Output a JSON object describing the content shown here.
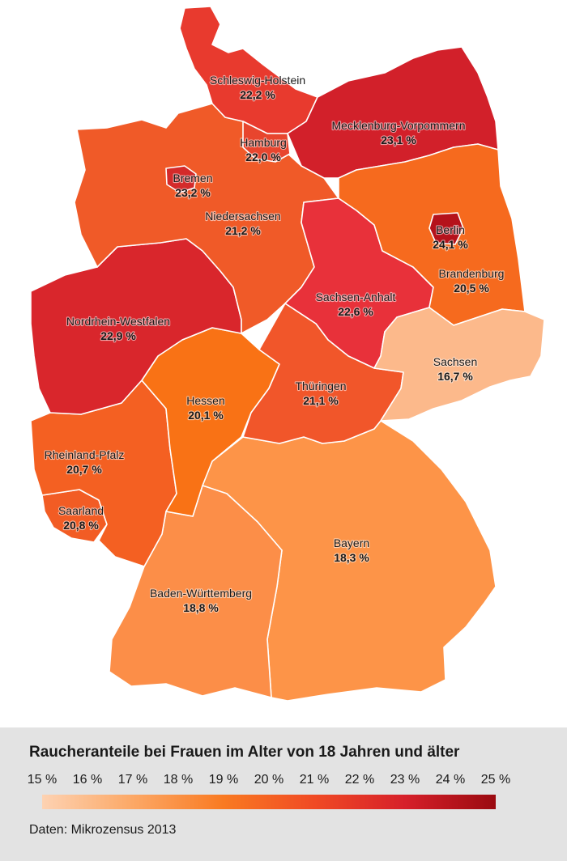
{
  "map": {
    "regions": [
      {
        "id": "schleswig-holstein",
        "name": "Schleswig-Holstein",
        "value_label": "22,2 %",
        "value": 22.2,
        "color": "#e83a2e"
      },
      {
        "id": "hamburg",
        "name": "Hamburg",
        "value_label": "22,0 %",
        "value": 22.0,
        "color": "#e8452e"
      },
      {
        "id": "mecklenburg-vorpommern",
        "name": "Mecklenburg-Vorpommern",
        "value_label": "23,1 %",
        "value": 23.1,
        "color": "#d2202a"
      },
      {
        "id": "bremen",
        "name": "Bremen",
        "value_label": "23,2 %",
        "value": 23.2,
        "color": "#d42a2a"
      },
      {
        "id": "niedersachsen",
        "name": "Niedersachsen",
        "value_label": "21,2 %",
        "value": 21.2,
        "color": "#f05a28"
      },
      {
        "id": "berlin",
        "name": "Berlin",
        "value_label": "24,1 %",
        "value": 24.1,
        "color": "#b5121b"
      },
      {
        "id": "brandenburg",
        "name": "Brandenburg",
        "value_label": "20,5 %",
        "value": 20.5,
        "color": "#f66a1e"
      },
      {
        "id": "sachsen-anhalt",
        "name": "Sachsen-Anhalt",
        "value_label": "22,6 %",
        "value": 22.6,
        "color": "#e8313a"
      },
      {
        "id": "nordrhein-westfalen",
        "name": "Nordrhein-Westfalen",
        "value_label": "22,9 %",
        "value": 22.9,
        "color": "#d9262c"
      },
      {
        "id": "sachsen",
        "name": "Sachsen",
        "value_label": "16,7 %",
        "value": 16.7,
        "color": "#fcb98b"
      },
      {
        "id": "hessen",
        "name": "Hessen",
        "value_label": "20,1 %",
        "value": 20.1,
        "color": "#f97215"
      },
      {
        "id": "thueringen",
        "name": "Thüringen",
        "value_label": "21,1 %",
        "value": 21.1,
        "color": "#f1562a"
      },
      {
        "id": "rheinland-pfalz",
        "name": "Rheinland-Pfalz",
        "value_label": "20,7 %",
        "value": 20.7,
        "color": "#f46022"
      },
      {
        "id": "saarland",
        "name": "Saarland",
        "value_label": "20,8 %",
        "value": 20.8,
        "color": "#f25c24"
      },
      {
        "id": "bayern",
        "name": "Bayern",
        "value_label": "18,3 %",
        "value": 18.3,
        "color": "#fd9448"
      },
      {
        "id": "baden-wuerttemberg",
        "name": "Baden-Württemberg",
        "value_label": "18,8 %",
        "value": 18.8,
        "color": "#fc8e48"
      }
    ]
  },
  "legend": {
    "title": "Raucheranteile bei Frauen im Alter von 18 Jahren und älter",
    "ticks": [
      "15 %",
      "16 %",
      "17 %",
      "18 %",
      "19 %",
      "20 %",
      "21 %",
      "22 %",
      "23 %",
      "24 %",
      "25 %"
    ],
    "range": [
      15,
      25
    ],
    "gradient": [
      "#fdd2b2",
      "#fca866",
      "#f97a22",
      "#f04a24",
      "#d6202a",
      "#9a0a10"
    ],
    "source": "Daten: Mikrozensus 2013"
  }
}
